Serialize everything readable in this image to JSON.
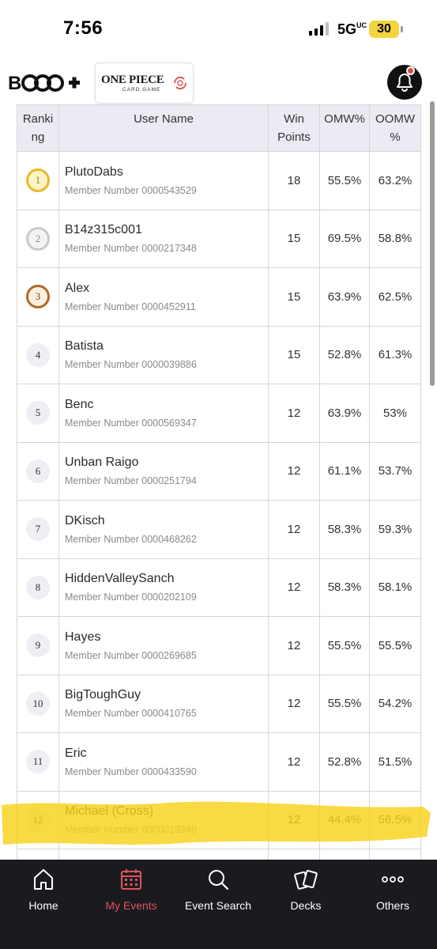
{
  "status_bar": {
    "time": "7:56",
    "network": "5G",
    "battery": "30"
  },
  "header": {
    "brand_logo_text": "BNDAI CARD GAMES+",
    "game_logo_title": "ONE PIECE",
    "game_logo_subtitle": "CARD GAME"
  },
  "table": {
    "columns": [
      "Ranki\nng",
      "User Name",
      "Win\nPoints",
      "OMW%",
      "OOMW\n%"
    ],
    "rows": [
      {
        "rank": "1",
        "name": "PlutoDabs",
        "member": "Member Number 0000543529",
        "win_points": "18",
        "omw": "55.5%",
        "oomw": "63.2%",
        "medal": "gold"
      },
      {
        "rank": "2",
        "name": "B14z315c001",
        "member": "Member Number 0000217348",
        "win_points": "15",
        "omw": "69.5%",
        "oomw": "58.8%",
        "medal": "silver"
      },
      {
        "rank": "3",
        "name": "Alex",
        "member": "Member Number 0000452911",
        "win_points": "15",
        "omw": "63.9%",
        "oomw": "62.5%",
        "medal": "bronze"
      },
      {
        "rank": "4",
        "name": "Batista",
        "member": "Member Number 0000039886",
        "win_points": "15",
        "omw": "52.8%",
        "oomw": "61.3%",
        "medal": ""
      },
      {
        "rank": "5",
        "name": "Benc",
        "member": "Member Number 0000569347",
        "win_points": "12",
        "omw": "63.9%",
        "oomw": "53%",
        "medal": ""
      },
      {
        "rank": "6",
        "name": "Unban Raigo",
        "member": "Member Number 0000251794",
        "win_points": "12",
        "omw": "61.1%",
        "oomw": "53.7%",
        "medal": ""
      },
      {
        "rank": "7",
        "name": "DKisch",
        "member": "Member Number 0000468262",
        "win_points": "12",
        "omw": "58.3%",
        "oomw": "59.3%",
        "medal": ""
      },
      {
        "rank": "8",
        "name": "HiddenValleySanch",
        "member": "Member Number 0000202109",
        "win_points": "12",
        "omw": "58.3%",
        "oomw": "58.1%",
        "medal": ""
      },
      {
        "rank": "9",
        "name": "Hayes",
        "member": "Member Number 0000269685",
        "win_points": "12",
        "omw": "55.5%",
        "oomw": "55.5%",
        "medal": ""
      },
      {
        "rank": "10",
        "name": "BigToughGuy",
        "member": "Member Number 0000410765",
        "win_points": "12",
        "omw": "55.5%",
        "oomw": "54.2%",
        "medal": ""
      },
      {
        "rank": "11",
        "name": "Eric",
        "member": "Member Number 0000433590",
        "win_points": "12",
        "omw": "52.8%",
        "oomw": "51.5%",
        "medal": ""
      },
      {
        "rank": "12",
        "name": "Michael (Cross)",
        "member": "Member Number 0000019349",
        "win_points": "12",
        "omw": "44.4%",
        "oomw": "56.5%",
        "medal": ""
      }
    ]
  },
  "bottom_nav": {
    "items": [
      {
        "label": "Home",
        "icon": "home-icon"
      },
      {
        "label": "My Events",
        "icon": "calendar-icon"
      },
      {
        "label": "Event Search",
        "icon": "search-icon"
      },
      {
        "label": "Decks",
        "icon": "cards-icon"
      },
      {
        "label": "Others",
        "icon": "more-icon"
      }
    ],
    "active_index": 1
  },
  "colors": {
    "highlight": "#f8d21a",
    "nav_background": "#1a1b1f",
    "nav_active": "#e0535c",
    "header_row": "#ebebf3"
  }
}
